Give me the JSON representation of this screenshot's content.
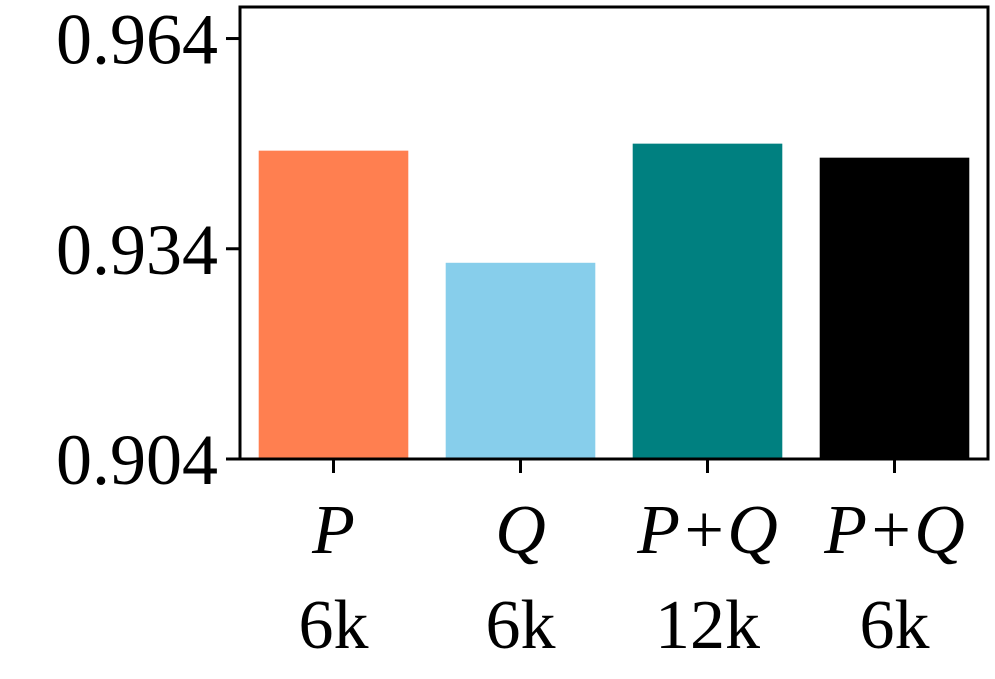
{
  "chart_data": {
    "type": "bar",
    "categories": [
      {
        "label": "P",
        "sublabel": "6k"
      },
      {
        "label": "Q",
        "sublabel": "6k"
      },
      {
        "label": "P+Q",
        "sublabel": "12k"
      },
      {
        "label": "P+Q",
        "sublabel": "6k"
      }
    ],
    "values": [
      0.948,
      0.932,
      0.949,
      0.947
    ],
    "bar_colors": [
      "#FF7F50",
      "#87CEEB",
      "#008080",
      "#000000"
    ],
    "ylim": [
      0.904,
      0.9685
    ],
    "yticks": [
      0.904,
      0.934,
      0.964
    ],
    "ytick_labels": [
      "0.904",
      "0.934",
      "0.964"
    ],
    "title": "",
    "xlabel": "",
    "ylabel": "",
    "grid": false
  }
}
